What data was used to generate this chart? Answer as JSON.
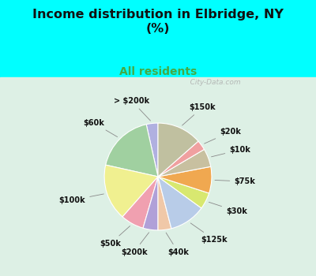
{
  "title": "Income distribution in Elbridge, NY\n(%)",
  "subtitle": "All residents",
  "title_color": "#111111",
  "subtitle_color": "#44aa44",
  "bg_cyan": "#00ffff",
  "bg_chart": "#e0f0e8",
  "labels": [
    "> $200k",
    "$60k",
    "$100k",
    "$50k",
    "$200k",
    "$40k",
    "$125k",
    "$30k",
    "$75k",
    "$10k",
    "$20k",
    "$150k"
  ],
  "values": [
    3.5,
    18.0,
    17.0,
    7.0,
    4.5,
    4.0,
    11.0,
    5.0,
    8.0,
    5.5,
    3.0,
    13.5
  ],
  "colors": [
    "#b0b0e0",
    "#a0d0a0",
    "#f0f090",
    "#f0a0b0",
    "#b0a0d8",
    "#f0c8a8",
    "#b8cce8",
    "#d8e870",
    "#f0a850",
    "#c8c0a0",
    "#f0a0a0",
    "#c0c0a0"
  ],
  "startangle": 90,
  "watermark": "   City-Data.com"
}
